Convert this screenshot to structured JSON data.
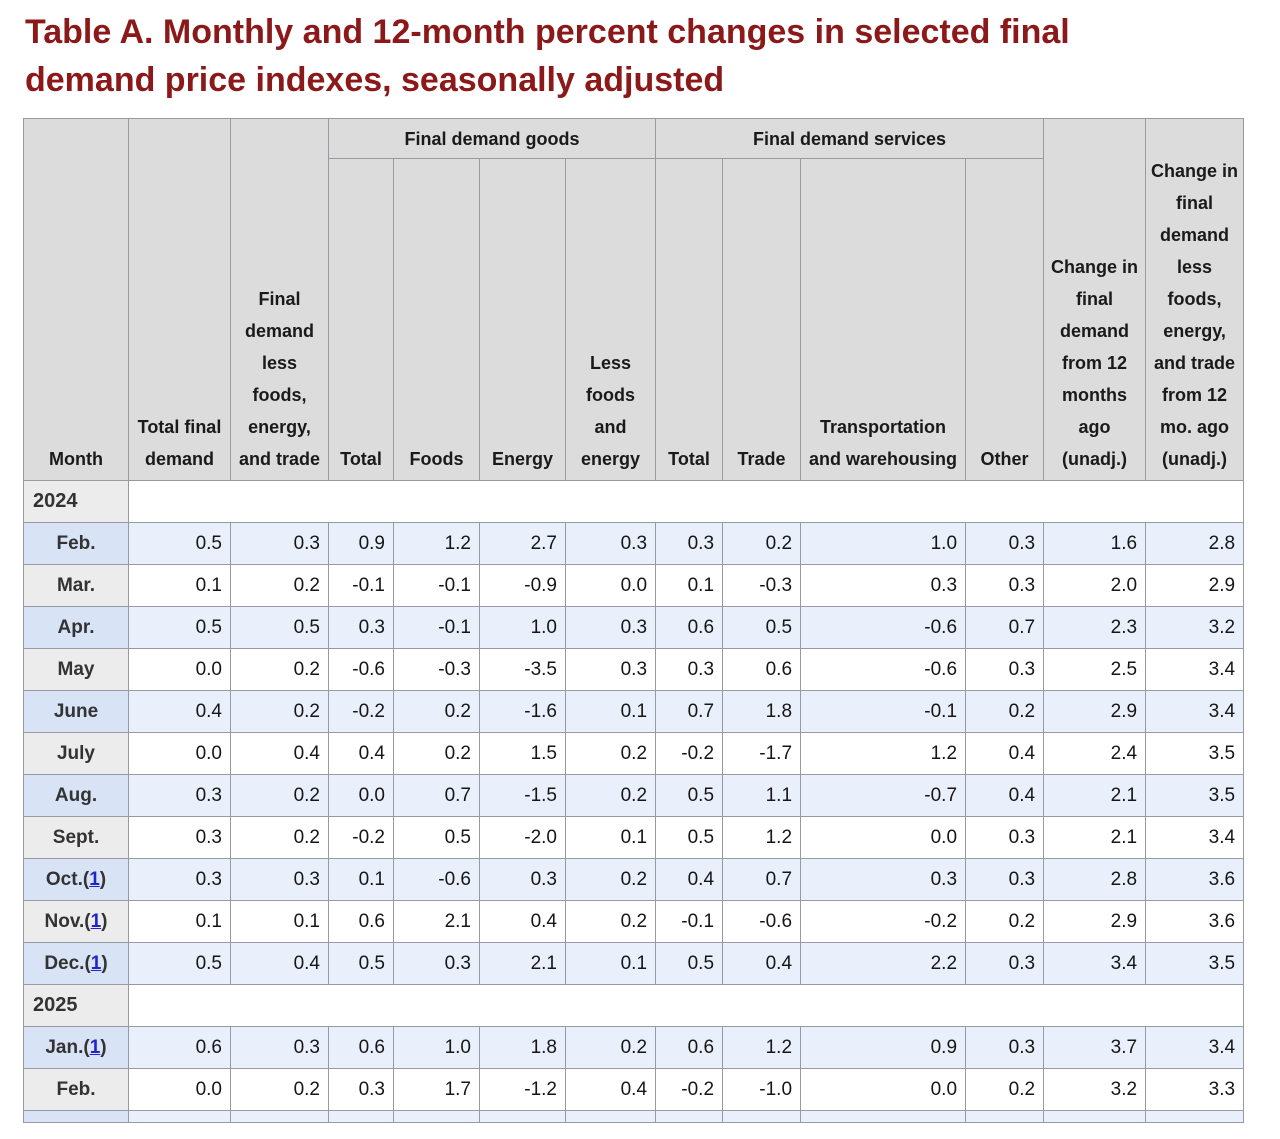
{
  "title": "Table A. Monthly and 12-month percent changes in selected final demand price indexes, seasonally adjusted",
  "colors": {
    "title_red": "#8c1919",
    "header_gray": "#dcdcdc",
    "month_gray": "#ececec",
    "row_blue": "#e9effb",
    "month_blue": "#d9e3f6",
    "link_blue": "#2323cb",
    "border_gray": "#979aa1"
  },
  "table": {
    "headers": {
      "month": "Month",
      "total_final_demand": "Total final demand",
      "fd_less_fet": "Final demand less foods, energy, and trade",
      "goods_group": "Final demand goods",
      "goods_sub": [
        "Total",
        "Foods",
        "Energy",
        "Less foods and energy"
      ],
      "services_group": "Final demand services",
      "services_sub": [
        "Total",
        "Trade",
        "Transportation and warehousing",
        "Other"
      ],
      "change_12mo": "Change in final demand from 12 months ago (unadj.)",
      "change_12mo_less": "Change in final demand less foods, energy, and trade from 12 mo. ago (unadj.)"
    },
    "sections": [
      {
        "year": "2024",
        "rows": [
          {
            "month": "Feb.",
            "footnote": null,
            "values": [
              "0.5",
              "0.3",
              "0.9",
              "1.2",
              "2.7",
              "0.3",
              "0.3",
              "0.2",
              "1.0",
              "0.3",
              "1.6",
              "2.8"
            ]
          },
          {
            "month": "Mar.",
            "footnote": null,
            "values": [
              "0.1",
              "0.2",
              "-0.1",
              "-0.1",
              "-0.9",
              "0.0",
              "0.1",
              "-0.3",
              "0.3",
              "0.3",
              "2.0",
              "2.9"
            ]
          },
          {
            "month": "Apr.",
            "footnote": null,
            "values": [
              "0.5",
              "0.5",
              "0.3",
              "-0.1",
              "1.0",
              "0.3",
              "0.6",
              "0.5",
              "-0.6",
              "0.7",
              "2.3",
              "3.2"
            ]
          },
          {
            "month": "May",
            "footnote": null,
            "values": [
              "0.0",
              "0.2",
              "-0.6",
              "-0.3",
              "-3.5",
              "0.3",
              "0.3",
              "0.6",
              "-0.6",
              "0.3",
              "2.5",
              "3.4"
            ]
          },
          {
            "month": "June",
            "footnote": null,
            "values": [
              "0.4",
              "0.2",
              "-0.2",
              "0.2",
              "-1.6",
              "0.1",
              "0.7",
              "1.8",
              "-0.1",
              "0.2",
              "2.9",
              "3.4"
            ]
          },
          {
            "month": "July",
            "footnote": null,
            "values": [
              "0.0",
              "0.4",
              "0.4",
              "0.2",
              "1.5",
              "0.2",
              "-0.2",
              "-1.7",
              "1.2",
              "0.4",
              "2.4",
              "3.5"
            ]
          },
          {
            "month": "Aug.",
            "footnote": null,
            "values": [
              "0.3",
              "0.2",
              "0.0",
              "0.7",
              "-1.5",
              "0.2",
              "0.5",
              "1.1",
              "-0.7",
              "0.4",
              "2.1",
              "3.5"
            ]
          },
          {
            "month": "Sept.",
            "footnote": null,
            "values": [
              "0.3",
              "0.2",
              "-0.2",
              "0.5",
              "-2.0",
              "0.1",
              "0.5",
              "1.2",
              "0.0",
              "0.3",
              "2.1",
              "3.4"
            ]
          },
          {
            "month": "Oct.",
            "footnote": "1",
            "values": [
              "0.3",
              "0.3",
              "0.1",
              "-0.6",
              "0.3",
              "0.2",
              "0.4",
              "0.7",
              "0.3",
              "0.3",
              "2.8",
              "3.6"
            ]
          },
          {
            "month": "Nov.",
            "footnote": "1",
            "values": [
              "0.1",
              "0.1",
              "0.6",
              "2.1",
              "0.4",
              "0.2",
              "-0.1",
              "-0.6",
              "-0.2",
              "0.2",
              "2.9",
              "3.6"
            ]
          },
          {
            "month": "Dec.",
            "footnote": "1",
            "values": [
              "0.5",
              "0.4",
              "0.5",
              "0.3",
              "2.1",
              "0.1",
              "0.5",
              "0.4",
              "2.2",
              "0.3",
              "3.4",
              "3.5"
            ]
          }
        ]
      },
      {
        "year": "2025",
        "rows": [
          {
            "month": "Jan.",
            "footnote": "1",
            "values": [
              "0.6",
              "0.3",
              "0.6",
              "1.0",
              "1.8",
              "0.2",
              "0.6",
              "1.2",
              "0.9",
              "0.3",
              "3.7",
              "3.4"
            ]
          },
          {
            "month": "Feb.",
            "footnote": null,
            "values": [
              "0.0",
              "0.2",
              "0.3",
              "1.7",
              "-1.2",
              "0.4",
              "-0.2",
              "-1.0",
              "0.0",
              "0.2",
              "3.2",
              "3.3"
            ]
          }
        ]
      }
    ]
  }
}
